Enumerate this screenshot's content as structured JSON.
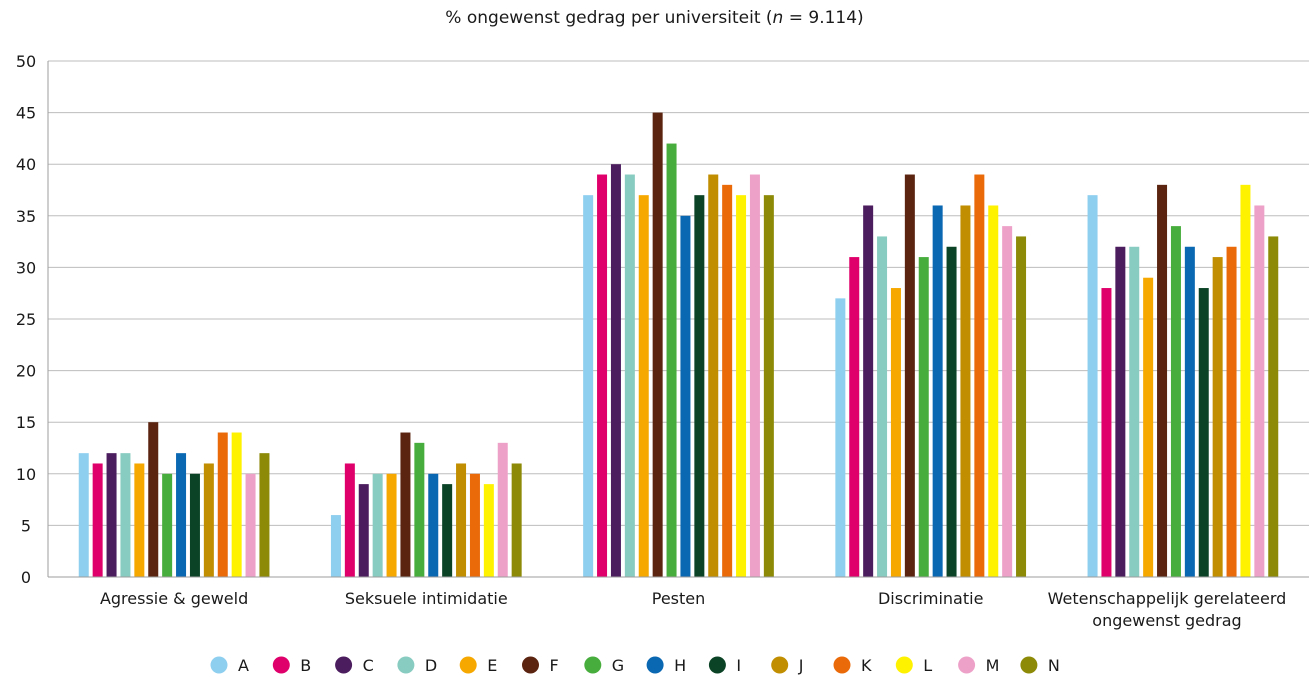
{
  "chart_data": {
    "type": "bar",
    "title": {
      "prefix": "% ongewenst gedrag per universiteit (",
      "n_symbol": "n",
      "suffix": " = 9.114)"
    },
    "xlabel": "",
    "ylabel": "",
    "ylim": [
      0,
      50
    ],
    "yticks": [
      "0",
      "5",
      "10",
      "15",
      "20",
      "25",
      "30",
      "35",
      "40",
      "45",
      "50"
    ],
    "grid": true,
    "legend_position": "bottom",
    "categories": [
      [
        "Agressie & geweld"
      ],
      [
        "Seksuele intimidatie"
      ],
      [
        "Pesten"
      ],
      [
        "Discriminatie"
      ],
      [
        "Wetenschappelijk gerelateerd",
        "ongewenst gedrag"
      ]
    ],
    "series": [
      {
        "name": "A",
        "color": "#8ecfef",
        "values": [
          12,
          6,
          37,
          27,
          37
        ]
      },
      {
        "name": "B",
        "color": "#e0006b",
        "values": [
          11,
          11,
          39,
          31,
          28
        ]
      },
      {
        "name": "C",
        "color": "#4b1c5e",
        "values": [
          12,
          9,
          40,
          36,
          32
        ]
      },
      {
        "name": "D",
        "color": "#88cbc0",
        "values": [
          12,
          10,
          39,
          33,
          32
        ]
      },
      {
        "name": "E",
        "color": "#f6a800",
        "values": [
          11,
          10,
          37,
          28,
          29
        ]
      },
      {
        "name": "F",
        "color": "#5a2410",
        "values": [
          15,
          14,
          45,
          39,
          38
        ]
      },
      {
        "name": "G",
        "color": "#47ad3c",
        "values": [
          10,
          13,
          42,
          31,
          34
        ]
      },
      {
        "name": "H",
        "color": "#0a67b2",
        "values": [
          12,
          10,
          35,
          36,
          32
        ]
      },
      {
        "name": "I",
        "color": "#0b4326",
        "values": [
          10,
          9,
          37,
          32,
          28
        ]
      },
      {
        "name": "J",
        "color": "#c08e00",
        "values": [
          11,
          11,
          39,
          36,
          31
        ]
      },
      {
        "name": "K",
        "color": "#ea6a0a",
        "values": [
          14,
          10,
          38,
          39,
          32
        ]
      },
      {
        "name": "L",
        "color": "#fff200",
        "values": [
          14,
          9,
          37,
          36,
          38
        ]
      },
      {
        "name": "M",
        "color": "#eea1c8",
        "values": [
          10,
          13,
          39,
          34,
          36
        ]
      },
      {
        "name": "N",
        "color": "#8c8a06",
        "values": [
          12,
          11,
          37,
          33,
          33
        ]
      }
    ]
  }
}
